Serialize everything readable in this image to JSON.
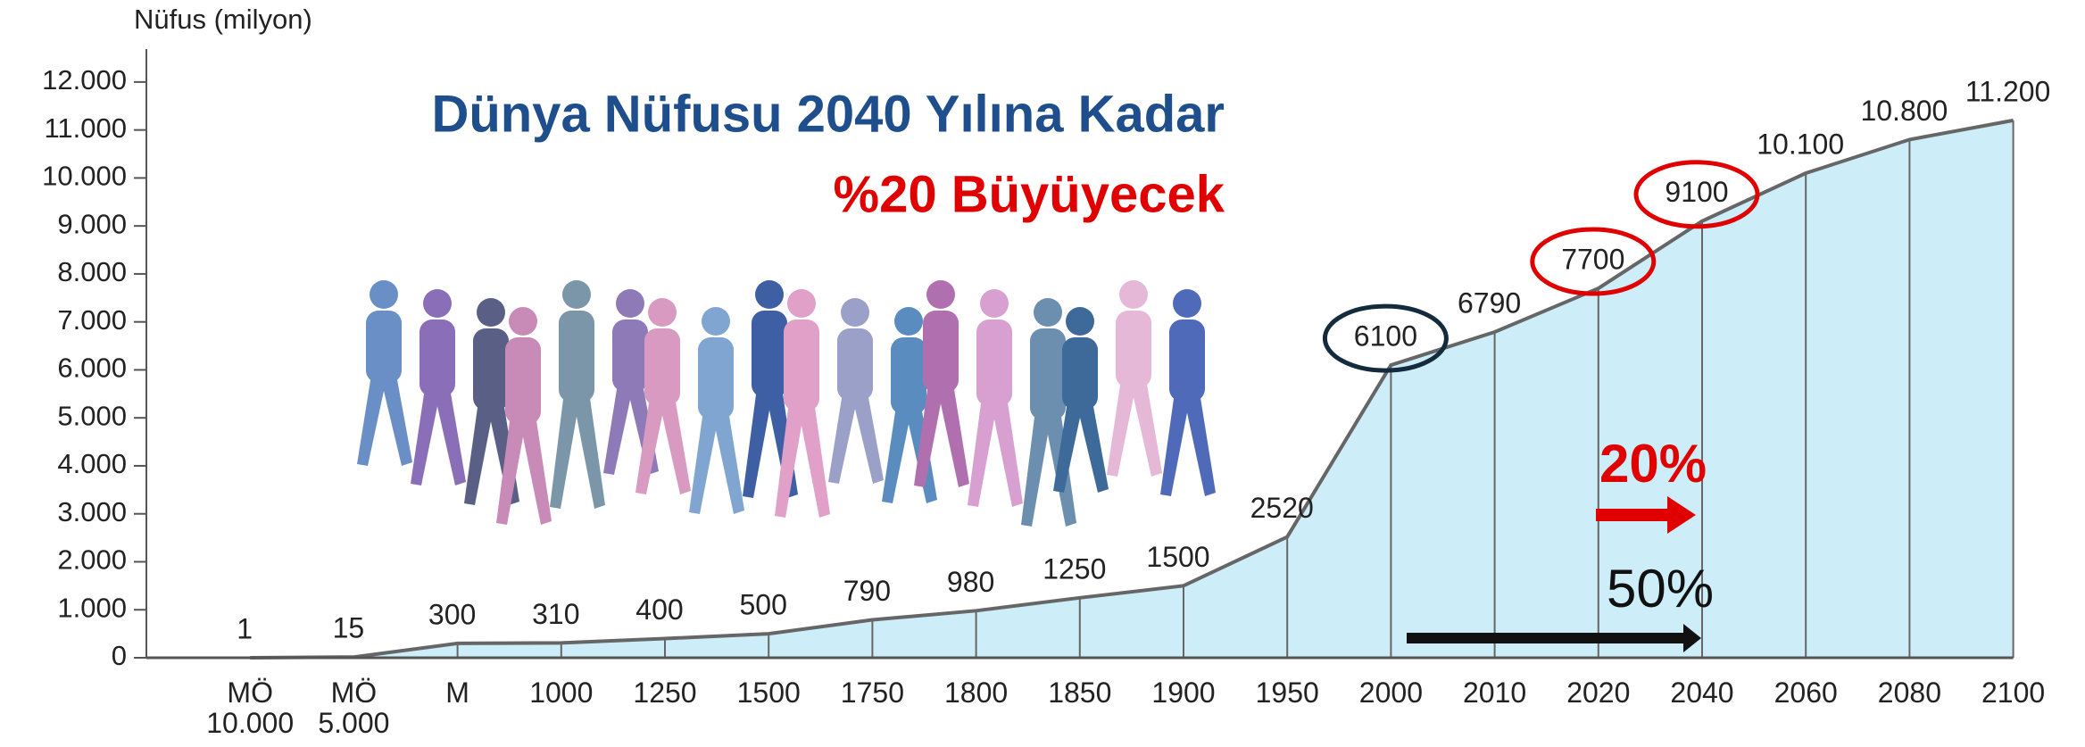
{
  "chart_data": {
    "type": "area",
    "title": "Dünya Nüfusu 2040 Yılına Kadar",
    "subtitle": "%20 Büyüyecek",
    "y_axis_label": "Nüfus (milyon)",
    "categories": [
      "MÖ\n10.000",
      "MÖ\n5.000",
      "M",
      "1000",
      "1250",
      "1500",
      "1750",
      "1800",
      "1850",
      "1900",
      "1950",
      "2000",
      "2010",
      "2020",
      "2040",
      "2060",
      "2080",
      "2100"
    ],
    "values": [
      1,
      15,
      300,
      310,
      400,
      500,
      790,
      980,
      1250,
      1500,
      2520,
      6100,
      6790,
      7700,
      9100,
      10100,
      10800,
      11200
    ],
    "value_labels": [
      "1",
      "15",
      "300",
      "310",
      "400",
      "500",
      "790",
      "980",
      "1250",
      "1500",
      "2520",
      "6100",
      "6790",
      "7700",
      "9100",
      "10.100",
      "10.800",
      "11.200"
    ],
    "color": "#cdeef9",
    "line_color": "#666666",
    "ylim": [
      0,
      12500
    ],
    "yticks": [
      0,
      {
        "value": 1000,
        "label": "1.000"
      },
      {
        "value": 2000,
        "label": "2.000"
      },
      {
        "value": 3000,
        "label": "3.000"
      },
      {
        "value": 4000,
        "label": "4.000"
      },
      {
        "value": 5000,
        "label": "5.000"
      },
      {
        "value": 6000,
        "label": "6.000"
      },
      {
        "value": 7000,
        "label": "7.000"
      },
      {
        "value": 8000,
        "label": "8.000"
      },
      {
        "value": 9000,
        "label": "9.000"
      },
      {
        "value": 10000,
        "label": "10.000"
      },
      {
        "value": 11000,
        "label": "11.000"
      },
      {
        "value": 12000,
        "label": "12.000"
      }
    ],
    "annotations": [
      "20%",
      "50%"
    ]
  }
}
